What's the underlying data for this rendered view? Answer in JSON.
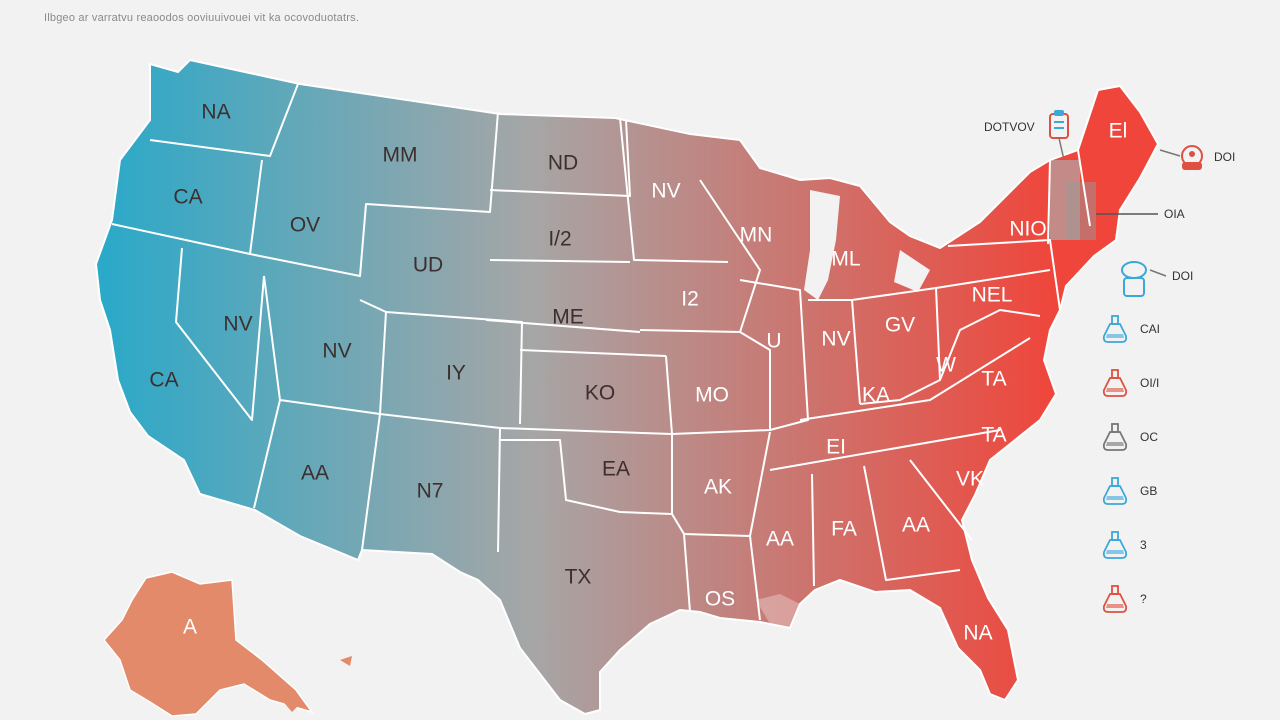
{
  "header": {
    "title": "",
    "subtitle": "Ilbgeo ar varratvu reaoodos ooviuuivouei vit ka ocovoduotatrs."
  },
  "map": {
    "gradient": {
      "west": "#2aa9c9",
      "middle": "#a6a6a6",
      "east": "#f0453a"
    },
    "state_labels": [
      {
        "id": "wa",
        "text": "NA"
      },
      {
        "id": "or",
        "text": "CA"
      },
      {
        "id": "ca-north",
        "text": "CA"
      },
      {
        "id": "nv",
        "text": "NV"
      },
      {
        "id": "id",
        "text": "OV"
      },
      {
        "id": "mt",
        "text": "MM"
      },
      {
        "id": "wy",
        "text": "UD"
      },
      {
        "id": "ut",
        "text": "NV"
      },
      {
        "id": "az",
        "text": "AA"
      },
      {
        "id": "co",
        "text": "IY"
      },
      {
        "id": "nm",
        "text": "N7"
      },
      {
        "id": "nd",
        "text": "ND"
      },
      {
        "id": "sd",
        "text": "I/2"
      },
      {
        "id": "ne",
        "text": "ME"
      },
      {
        "id": "ks",
        "text": "KO"
      },
      {
        "id": "ok",
        "text": "EA"
      },
      {
        "id": "tx",
        "text": "TX"
      },
      {
        "id": "mn",
        "text": "NV"
      },
      {
        "id": "ia",
        "text": "I2"
      },
      {
        "id": "mo",
        "text": "MO"
      },
      {
        "id": "ar",
        "text": "AK"
      },
      {
        "id": "la",
        "text": "OS"
      },
      {
        "id": "wi",
        "text": "MN"
      },
      {
        "id": "il",
        "text": "U"
      },
      {
        "id": "in",
        "text": "NV"
      },
      {
        "id": "mi",
        "text": "ML"
      },
      {
        "id": "oh",
        "text": "GV"
      },
      {
        "id": "ky",
        "text": "KA"
      },
      {
        "id": "tn",
        "text": "EI"
      },
      {
        "id": "ms",
        "text": "AA"
      },
      {
        "id": "al",
        "text": "FA"
      },
      {
        "id": "ga",
        "text": "AA"
      },
      {
        "id": "fl",
        "text": "NA"
      },
      {
        "id": "sc",
        "text": "VK"
      },
      {
        "id": "nc",
        "text": "TA"
      },
      {
        "id": "va",
        "text": "TA"
      },
      {
        "id": "wv",
        "text": "W"
      },
      {
        "id": "pa",
        "text": "NEL"
      },
      {
        "id": "ny",
        "text": "NIO"
      },
      {
        "id": "me",
        "text": "El"
      },
      {
        "id": "ak",
        "text": "A"
      }
    ],
    "callouts": [
      {
        "id": "top",
        "text": "DOTVOV",
        "icon": "clipboard-icon"
      },
      {
        "id": "ne1",
        "text": "DOI",
        "icon": "alarm-icon"
      },
      {
        "id": "ne2",
        "text": "OIA",
        "icon": "line-marker"
      },
      {
        "id": "ne3",
        "text": "DOI",
        "icon": "lamp-icon"
      }
    ]
  },
  "legend": {
    "items": [
      {
        "text": "CAI",
        "icon": "flask-icon",
        "color": "#3aa8d8"
      },
      {
        "text": "OI/I",
        "icon": "flask-icon",
        "color": "#e05040"
      },
      {
        "text": "OC",
        "icon": "flask-icon",
        "color": "#777777"
      },
      {
        "text": "GB",
        "icon": "flask-icon",
        "color": "#3aa8d8"
      },
      {
        "text": "3",
        "icon": "flask-icon",
        "color": "#3aa8d8"
      },
      {
        "text": "?",
        "icon": "flask-icon",
        "color": "#e05040"
      }
    ]
  }
}
